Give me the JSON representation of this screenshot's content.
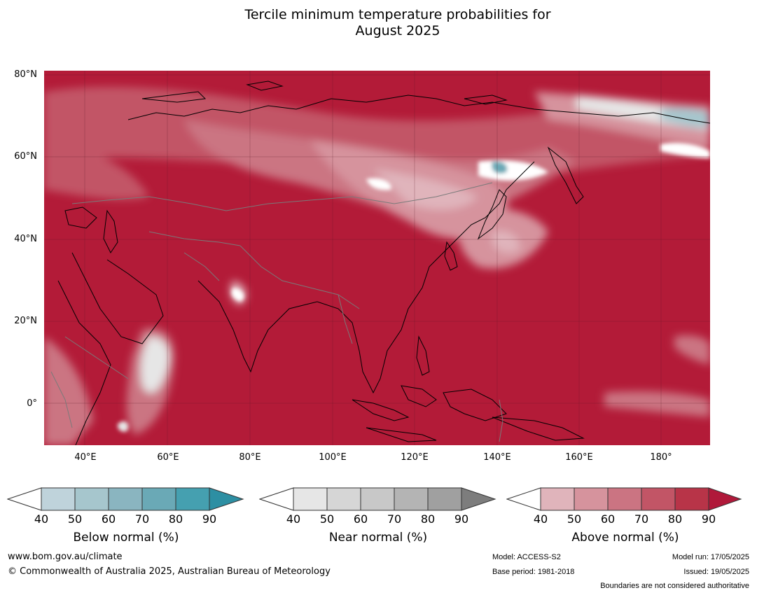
{
  "title_line1": "Tercile minimum temperature probabilities for",
  "title_line2": "August 2025",
  "map": {
    "lat_labels": [
      "80°N",
      "60°N",
      "40°N",
      "20°N",
      "0°"
    ],
    "lon_labels": [
      "40°E",
      "60°E",
      "80°E",
      "100°E",
      "120°E",
      "140°E",
      "160°E",
      "180°"
    ],
    "background_color": "#b31b38"
  },
  "legends": [
    {
      "title": "Below normal (%)",
      "ticks": [
        "40",
        "50",
        "60",
        "70",
        "80",
        "90"
      ],
      "colors": [
        "#bfd3db",
        "#a6c6cd",
        "#8ab5c0",
        "#6aa9b6",
        "#45a0b0",
        "#2d8fa3"
      ]
    },
    {
      "title": "Near normal (%)",
      "ticks": [
        "40",
        "50",
        "60",
        "70",
        "80",
        "90"
      ],
      "colors": [
        "#e6e6e6",
        "#d6d6d6",
        "#c8c8c8",
        "#b4b4b4",
        "#a0a0a0",
        "#7d7d7d"
      ]
    },
    {
      "title": "Above normal (%)",
      "ticks": [
        "40",
        "50",
        "60",
        "70",
        "80",
        "90"
      ],
      "colors": [
        "#e0b4bb",
        "#d6939d",
        "#cb7482",
        "#c25566",
        "#b83448",
        "#b0193a"
      ]
    }
  ],
  "footer": {
    "website": "www.bom.gov.au/climate",
    "copyright": "© Commonwealth of Australia 2025, Australian Bureau of Meteorology",
    "model": "Model: ACCESS-S2",
    "base_period": "Base period: 1981-2018",
    "model_run": "Model run: 17/05/2025",
    "issued": "Issued: 19/05/2025",
    "boundaries_note": "Boundaries are not considered authoritative"
  }
}
